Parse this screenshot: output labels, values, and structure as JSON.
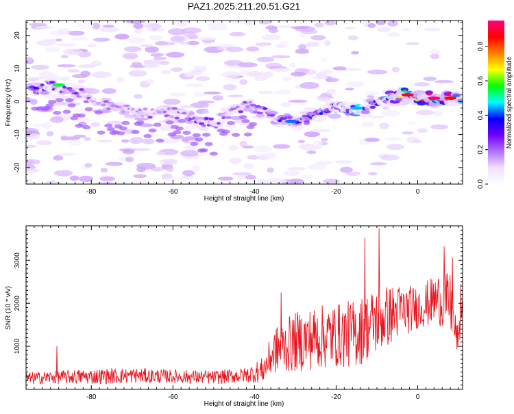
{
  "title": "PAZ1.2025.211.20.51.G21",
  "chart_data": [
    {
      "type": "heatmap",
      "name": "spectrogram",
      "xlabel": "Height of straight line (km)",
      "ylabel": "Frequency (Hz)",
      "xlim": [
        -96,
        11
      ],
      "ylim": [
        -25,
        24.5
      ],
      "xticks": [
        -80,
        -60,
        -40,
        -20,
        0
      ],
      "yticks": [
        -20,
        -10,
        0,
        10,
        20
      ],
      "colorbar": {
        "label": "Normalized spectral amplitude",
        "range": [
          0,
          0.95
        ],
        "ticks": [
          0.0,
          0.2,
          0.4,
          0.6,
          0.8
        ],
        "colormap": [
          "#ffffff",
          "#f0e0ff",
          "#b070ff",
          "#7000ff",
          "#0000ff",
          "#00ffff",
          "#00ff00",
          "#ffff00",
          "#ff7f00",
          "#ff0000",
          "#ff0080"
        ]
      },
      "ridge": {
        "description_points_x_km": [
          -94,
          -90,
          -86,
          -82,
          -78,
          -74,
          -70,
          -66,
          -62,
          -58,
          -54,
          -50,
          -46,
          -42,
          -38,
          -34,
          -30,
          -26,
          -22,
          -18,
          -14,
          -10,
          -6,
          -2,
          2,
          6,
          10
        ],
        "frequency_hz": [
          4,
          5,
          4,
          2,
          0,
          -2,
          -3,
          -4,
          -3,
          -4,
          -6,
          -7,
          -3,
          -1,
          -3,
          -5,
          -6,
          -4,
          -2,
          -2,
          -2,
          0,
          2,
          2,
          1,
          0.5,
          1
        ],
        "amplitude": [
          0.35,
          0.3,
          0.25,
          0.2,
          0.2,
          0.2,
          0.18,
          0.2,
          0.18,
          0.2,
          0.25,
          0.22,
          0.2,
          0.22,
          0.25,
          0.3,
          0.3,
          0.3,
          0.35,
          0.45,
          0.35,
          0.3,
          0.5,
          0.8,
          0.7,
          0.9,
          0.5
        ]
      },
      "grid": false
    },
    {
      "type": "line",
      "name": "snr",
      "xlabel": "Height of straight line (km)",
      "ylabel": "SNR (10 * v/v)",
      "xlim": [
        -96,
        11
      ],
      "ylim": [
        0,
        3800
      ],
      "xticks": [
        -80,
        -60,
        -40,
        -20,
        0
      ],
      "yticks": [
        1000,
        2000,
        3000
      ],
      "color": "#e8141e",
      "envelope": {
        "x": [
          -96,
          -90,
          -80,
          -70,
          -60,
          -50,
          -42,
          -38,
          -35,
          -30,
          -25,
          -20,
          -15,
          -10,
          -5,
          0,
          5,
          8,
          9,
          10,
          11
        ],
        "mean": [
          250,
          280,
          300,
          320,
          300,
          280,
          330,
          450,
          900,
          1100,
          1200,
          1250,
          1300,
          1600,
          1800,
          1900,
          2100,
          2000,
          1400,
          1100,
          2100
        ],
        "spread": [
          150,
          150,
          180,
          180,
          160,
          160,
          180,
          300,
          550,
          700,
          750,
          750,
          800,
          800,
          650,
          500,
          600,
          700,
          500,
          300,
          300
        ]
      },
      "peaks": [
        {
          "x": -88.4,
          "y": 1000
        },
        {
          "x": -33.5,
          "y": 2250
        },
        {
          "x": -13.0,
          "y": 3520
        },
        {
          "x": -9.5,
          "y": 3740
        },
        {
          "x": 6.5,
          "y": 3320
        },
        {
          "x": 8.5,
          "y": 3060
        },
        {
          "x": 10.6,
          "y": 2450
        }
      ],
      "grid": false
    }
  ]
}
